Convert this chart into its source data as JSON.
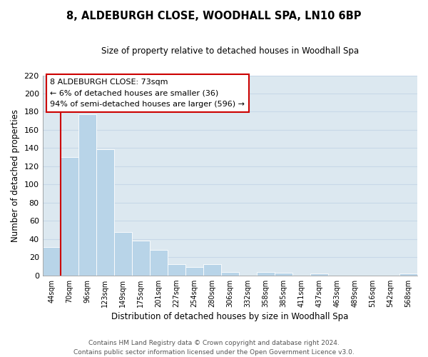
{
  "title": "8, ALDEBURGH CLOSE, WOODHALL SPA, LN10 6BP",
  "subtitle": "Size of property relative to detached houses in Woodhall Spa",
  "xlabel": "Distribution of detached houses by size in Woodhall Spa",
  "ylabel": "Number of detached properties",
  "bar_color": "#b8d4e8",
  "grid_color": "#c8d8e8",
  "plot_bg_color": "#dce8f0",
  "fig_bg_color": "#ffffff",
  "bin_labels": [
    "44sqm",
    "70sqm",
    "96sqm",
    "123sqm",
    "149sqm",
    "175sqm",
    "201sqm",
    "227sqm",
    "254sqm",
    "280sqm",
    "306sqm",
    "332sqm",
    "358sqm",
    "385sqm",
    "411sqm",
    "437sqm",
    "463sqm",
    "489sqm",
    "516sqm",
    "542sqm",
    "568sqm"
  ],
  "bar_heights": [
    31,
    130,
    177,
    139,
    48,
    38,
    28,
    12,
    9,
    12,
    4,
    0,
    4,
    3,
    0,
    2,
    0,
    0,
    0,
    0,
    2
  ],
  "ylim": [
    0,
    220
  ],
  "yticks": [
    0,
    20,
    40,
    60,
    80,
    100,
    120,
    140,
    160,
    180,
    200,
    220
  ],
  "marker_color": "#cc0000",
  "annotation_title": "8 ALDEBURGH CLOSE: 73sqm",
  "annotation_line1": "← 6% of detached houses are smaller (36)",
  "annotation_line2": "94% of semi-detached houses are larger (596) →",
  "footer1": "Contains HM Land Registry data © Crown copyright and database right 2024.",
  "footer2": "Contains public sector information licensed under the Open Government Licence v3.0."
}
